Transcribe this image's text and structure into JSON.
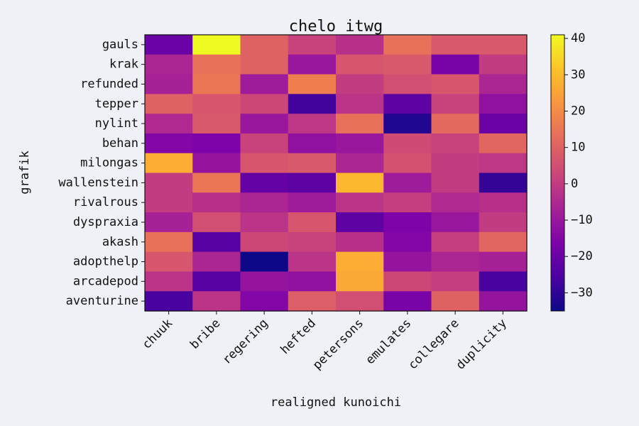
{
  "chart_data": {
    "type": "heatmap",
    "title": "chelo itwg",
    "xlabel": "realigned kunoichi",
    "ylabel": "grafik",
    "colormap": "plasma",
    "vmin": -35,
    "vmax": 41,
    "colorbar_ticks": [
      "40",
      "30",
      "20",
      "10",
      "0",
      "−10",
      "−20",
      "−30"
    ],
    "colorbar_tick_values": [
      40,
      30,
      20,
      10,
      0,
      -10,
      -20,
      -30
    ],
    "columns": [
      "chuuk",
      "bribe",
      "regering",
      "hefted",
      "petersons",
      "emulates",
      "collegare",
      "duplicity"
    ],
    "rows": [
      "gauls",
      "krak",
      "refunded",
      "tepper",
      "nylint",
      "behan",
      "milongas",
      "wallenstein",
      "rivalrous",
      "dyspraxia",
      "akash",
      "adopthelp",
      "arcadepod",
      "aventurine"
    ],
    "values": [
      [
        -20,
        41,
        10,
        2,
        -3,
        14,
        8,
        8
      ],
      [
        -6,
        14,
        10,
        -10,
        7,
        8,
        -17,
        0
      ],
      [
        -7,
        15,
        -9,
        17,
        0,
        5,
        7,
        -6
      ],
      [
        10,
        7,
        3,
        -27,
        -2,
        -22,
        2,
        -12
      ],
      [
        -5,
        8,
        -10,
        -1,
        14,
        -32,
        12,
        -20
      ],
      [
        -15,
        -16,
        2,
        -12,
        -10,
        4,
        2,
        11
      ],
      [
        27,
        -11,
        7,
        8,
        -6,
        6,
        0,
        -1
      ],
      [
        0,
        15,
        -21,
        -22,
        29,
        -9,
        0,
        -29
      ],
      [
        0,
        -3,
        -6,
        -9,
        -2,
        1,
        -5,
        -3
      ],
      [
        -7,
        5,
        -2,
        7,
        -22,
        -16,
        -10,
        0
      ],
      [
        14,
        -23,
        3,
        2,
        -3,
        -15,
        1,
        11
      ],
      [
        7,
        -6,
        -35,
        -2,
        27,
        -11,
        -6,
        -7
      ],
      [
        -2,
        -23,
        -11,
        -12,
        26,
        3,
        1,
        -26
      ],
      [
        -26,
        -2,
        -15,
        9,
        5,
        -17,
        10,
        -11
      ]
    ]
  }
}
